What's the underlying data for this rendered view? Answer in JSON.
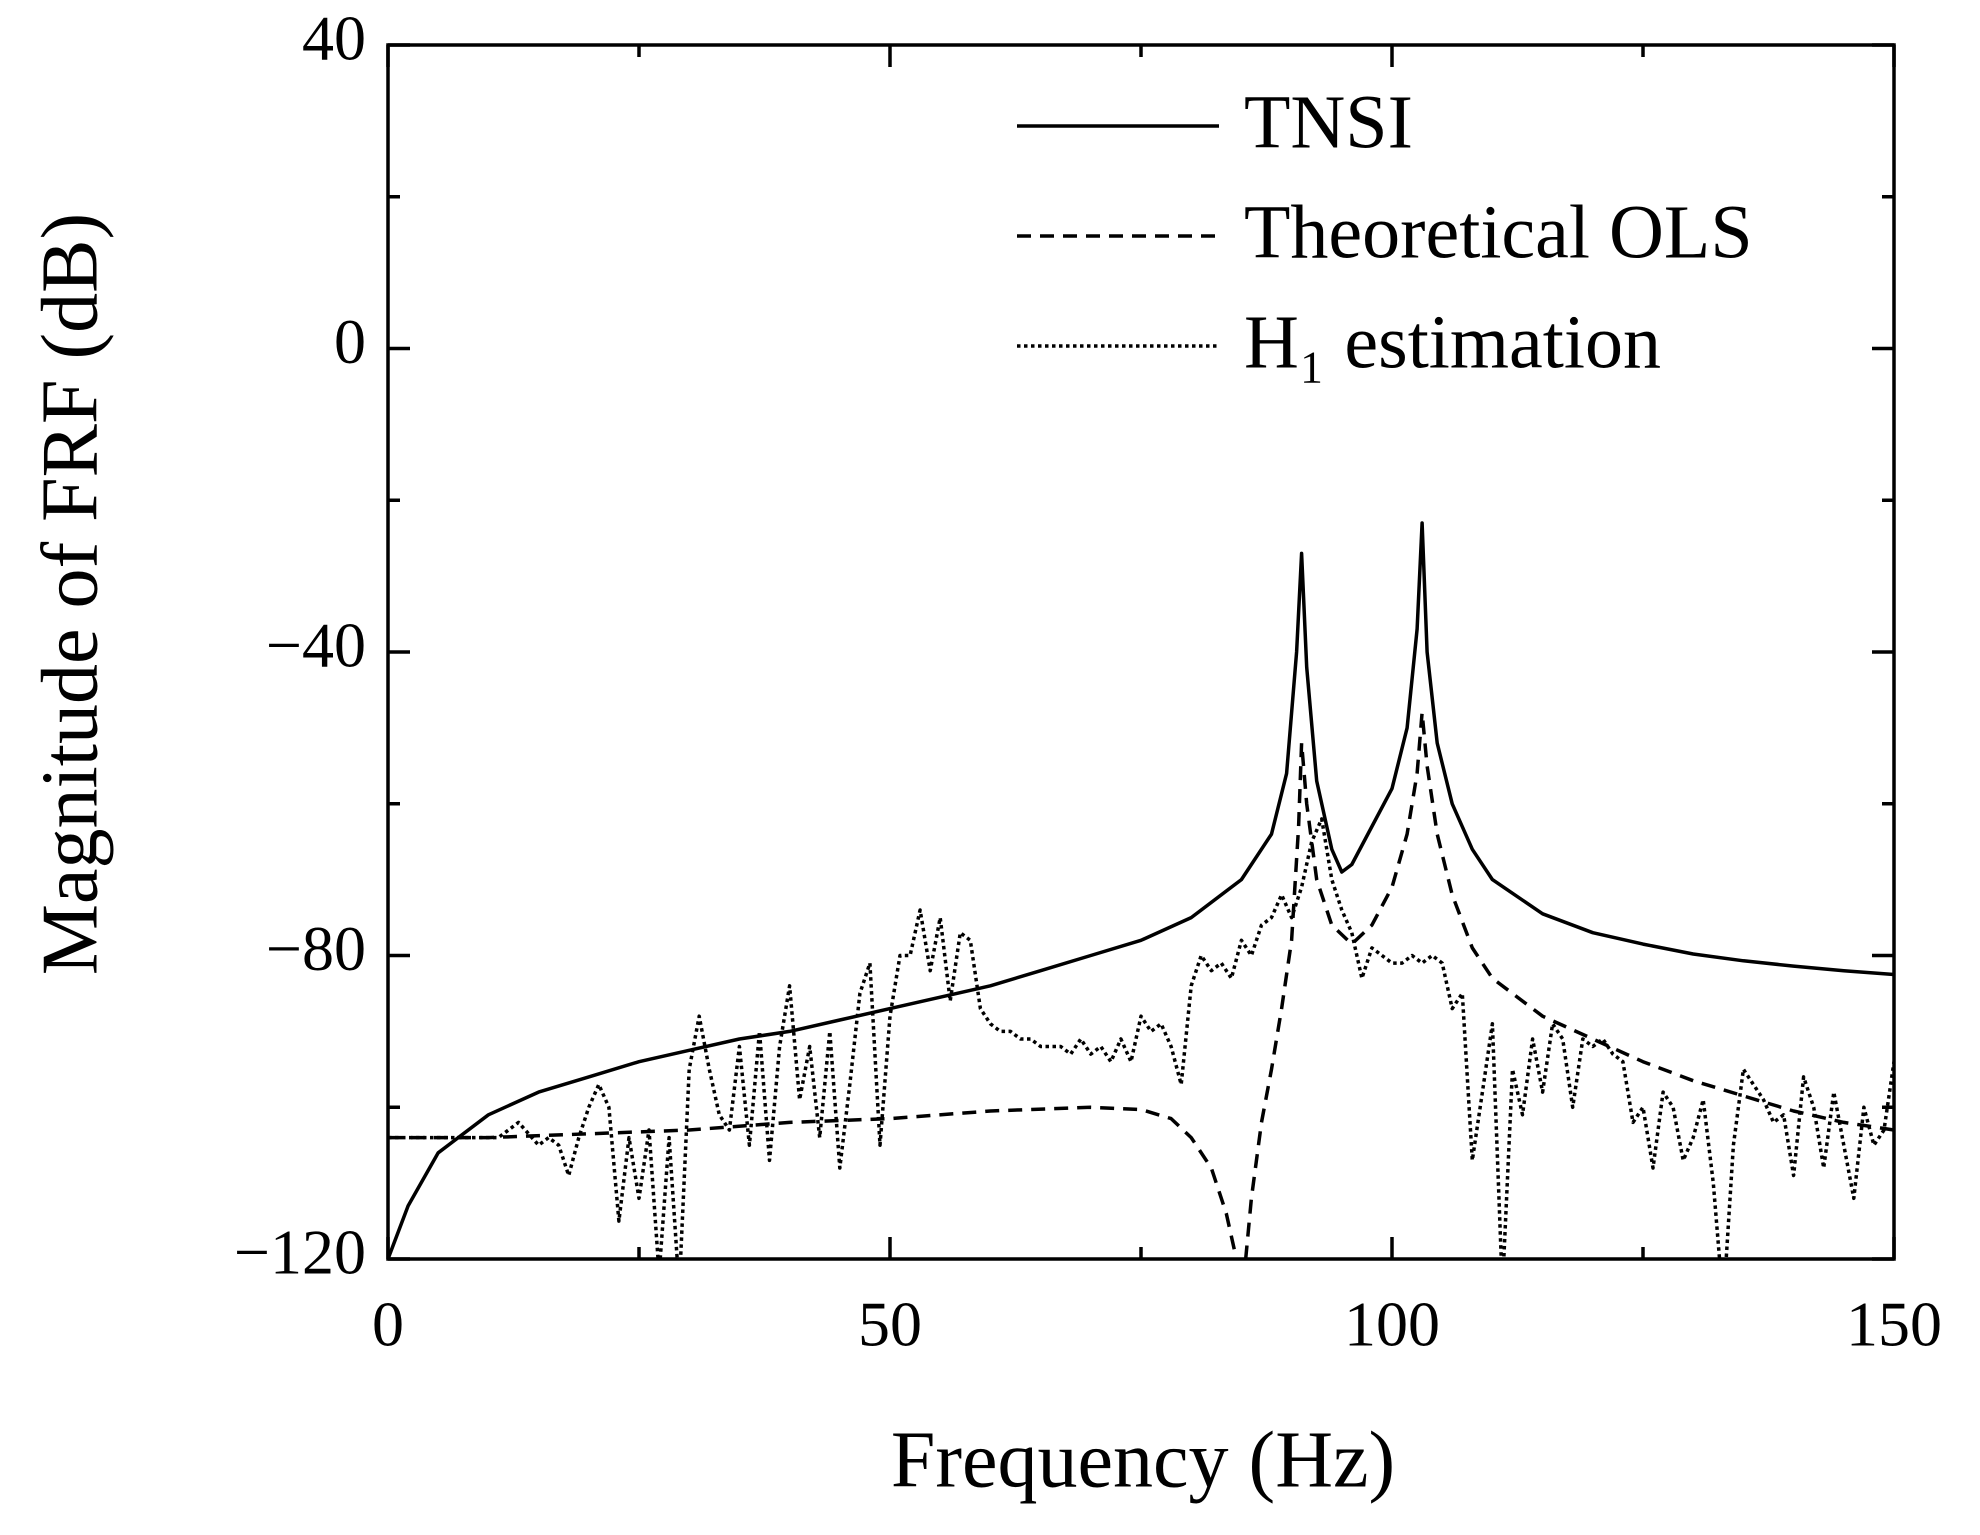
{
  "chart_data": {
    "type": "line",
    "xlabel": "Frequency (Hz)",
    "ylabel": "Magnitude of FRF (dB)",
    "xlim": [
      0,
      150
    ],
    "ylim": [
      -120,
      40
    ],
    "xticks": [
      0,
      50,
      100,
      150
    ],
    "xminorticks": [
      25,
      75,
      125
    ],
    "yticks": [
      {
        "value": -120,
        "label": "−120"
      },
      {
        "value": -80,
        "label": "−80"
      },
      {
        "value": -40,
        "label": "−40"
      },
      0,
      40
    ],
    "yminorticks": [
      -100,
      -60,
      -20,
      20
    ],
    "legend": "upper right",
    "series": [
      {
        "name": "TNSI",
        "color": "#000000",
        "dash": "solid",
        "x": [
          0,
          2,
          5,
          10,
          15,
          20,
          25,
          30,
          35,
          40,
          45,
          50,
          55,
          60,
          65,
          70,
          75,
          80,
          85,
          88,
          89.5,
          90.5,
          91,
          91.5,
          92.5,
          94,
          95,
          96,
          98,
          100,
          101.5,
          102.5,
          103,
          103.5,
          104.5,
          106,
          108,
          110,
          115,
          120,
          125,
          130,
          135,
          140,
          145,
          150
        ],
        "values": [
          -120,
          -113,
          -106,
          -101,
          -98,
          -96,
          -94,
          -92.5,
          -91,
          -90,
          -88.5,
          -87,
          -85.5,
          -84,
          -82,
          -80,
          -78,
          -75,
          -70,
          -64,
          -56,
          -40,
          -27,
          -42,
          -57,
          -66,
          -69,
          -68,
          -63,
          -58,
          -50,
          -37,
          -23,
          -40,
          -52,
          -60,
          -66,
          -70,
          -74.5,
          -77,
          -78.5,
          -79.8,
          -80.7,
          -81.4,
          -82,
          -82.5
        ]
      },
      {
        "name": "Theoretical OLS",
        "color": "#000000",
        "dash": "dashed",
        "x": [
          0,
          10,
          20,
          30,
          40,
          50,
          60,
          70,
          75,
          78,
          80,
          82,
          83.5,
          84.5,
          85,
          86,
          87,
          88,
          89,
          90,
          90.7,
          91,
          91.5,
          92.5,
          94,
          96,
          98,
          100,
          101.5,
          102.5,
          103,
          103.5,
          104.5,
          106,
          108,
          110,
          115,
          120,
          125,
          130,
          135,
          140,
          145,
          150
        ],
        "values": [
          -104,
          -104,
          -103.5,
          -103,
          -102,
          -101.5,
          -100.5,
          -100,
          -100.3,
          -101.5,
          -104,
          -108,
          -114,
          -120,
          -126,
          -112,
          -102,
          -95,
          -87,
          -78,
          -63,
          -52,
          -60,
          -70,
          -76,
          -78.5,
          -76,
          -71,
          -64,
          -56,
          -48,
          -55,
          -64,
          -72,
          -79,
          -83,
          -88,
          -91,
          -94,
          -96.5,
          -98.5,
          -100.5,
          -102,
          -103
        ]
      },
      {
        "name": "H₁ estimation",
        "color": "#000000",
        "dash": "dotted",
        "x": [
          0,
          1,
          2,
          3,
          4,
          5,
          6,
          7,
          8,
          9,
          10,
          11,
          12,
          13,
          14,
          15,
          16,
          17,
          18,
          19,
          20,
          21,
          22,
          23,
          24,
          25,
          26,
          27,
          28,
          29,
          30,
          31,
          32,
          33,
          34,
          35,
          36,
          37,
          38,
          39,
          40,
          41,
          42,
          43,
          44,
          45,
          46,
          47,
          48,
          49,
          50,
          51,
          52,
          53,
          54,
          55,
          56,
          57,
          58,
          59,
          60,
          61,
          62,
          63,
          64,
          65,
          66,
          67,
          68,
          69,
          70,
          71,
          72,
          73,
          74,
          75,
          76,
          77,
          78,
          79,
          80,
          81,
          82,
          83,
          84,
          85,
          86,
          87,
          88,
          89,
          90,
          91,
          92,
          93,
          94,
          95,
          96,
          97,
          98,
          99,
          100,
          101,
          102,
          103,
          104,
          105,
          106,
          107,
          108,
          109,
          110,
          111,
          112,
          113,
          114,
          115,
          116,
          117,
          118,
          119,
          120,
          121,
          122,
          123,
          124,
          125,
          126,
          127,
          128,
          129,
          130,
          131,
          132,
          133,
          134,
          135,
          136,
          137,
          138,
          139,
          140,
          141,
          142,
          143,
          144,
          145,
          146,
          147,
          148,
          149,
          150
        ],
        "values": [
          -104,
          -104,
          -104,
          -104,
          -104,
          -104,
          -104,
          -104,
          -104,
          -104,
          -104,
          -104,
          -103,
          -102,
          -103.5,
          -105,
          -104,
          -105,
          -109,
          -104,
          -100,
          -97,
          -100,
          -115,
          -104,
          -112,
          -103,
          -122,
          -104,
          -124,
          -95,
          -88,
          -95,
          -101,
          -103,
          -92,
          -105,
          -90,
          -107,
          -92,
          -84,
          -99,
          -92,
          -104,
          -90,
          -108,
          -97,
          -85,
          -81,
          -105,
          -88,
          -80,
          -80,
          -74,
          -82,
          -75,
          -86,
          -77,
          -78,
          -87,
          -89,
          -90,
          -90,
          -91,
          -91,
          -92,
          -92,
          -92,
          -93,
          -91,
          -93,
          -92,
          -94,
          -91,
          -94,
          -88,
          -90,
          -89,
          -92,
          -97,
          -84,
          -80,
          -82,
          -81,
          -83,
          -78,
          -80,
          -76,
          -75,
          -72,
          -75,
          -71,
          -65,
          -62,
          -70,
          -74,
          -77,
          -83,
          -79,
          -80,
          -81,
          -81,
          -80,
          -81,
          -80,
          -81,
          -87,
          -85,
          -107,
          -98,
          -89,
          -124,
          -95,
          -101,
          -91,
          -98,
          -89,
          -91,
          -100,
          -91,
          -92,
          -91,
          -93,
          -94,
          -102,
          -100,
          -108,
          -98,
          -100,
          -107,
          -104,
          -99,
          -110,
          -126,
          -105,
          -95,
          -97,
          -99,
          -102,
          -101,
          -109,
          -96,
          -100,
          -108,
          -98,
          -105,
          -112,
          -100,
          -105,
          -103,
          -94
        ]
      }
    ]
  }
}
